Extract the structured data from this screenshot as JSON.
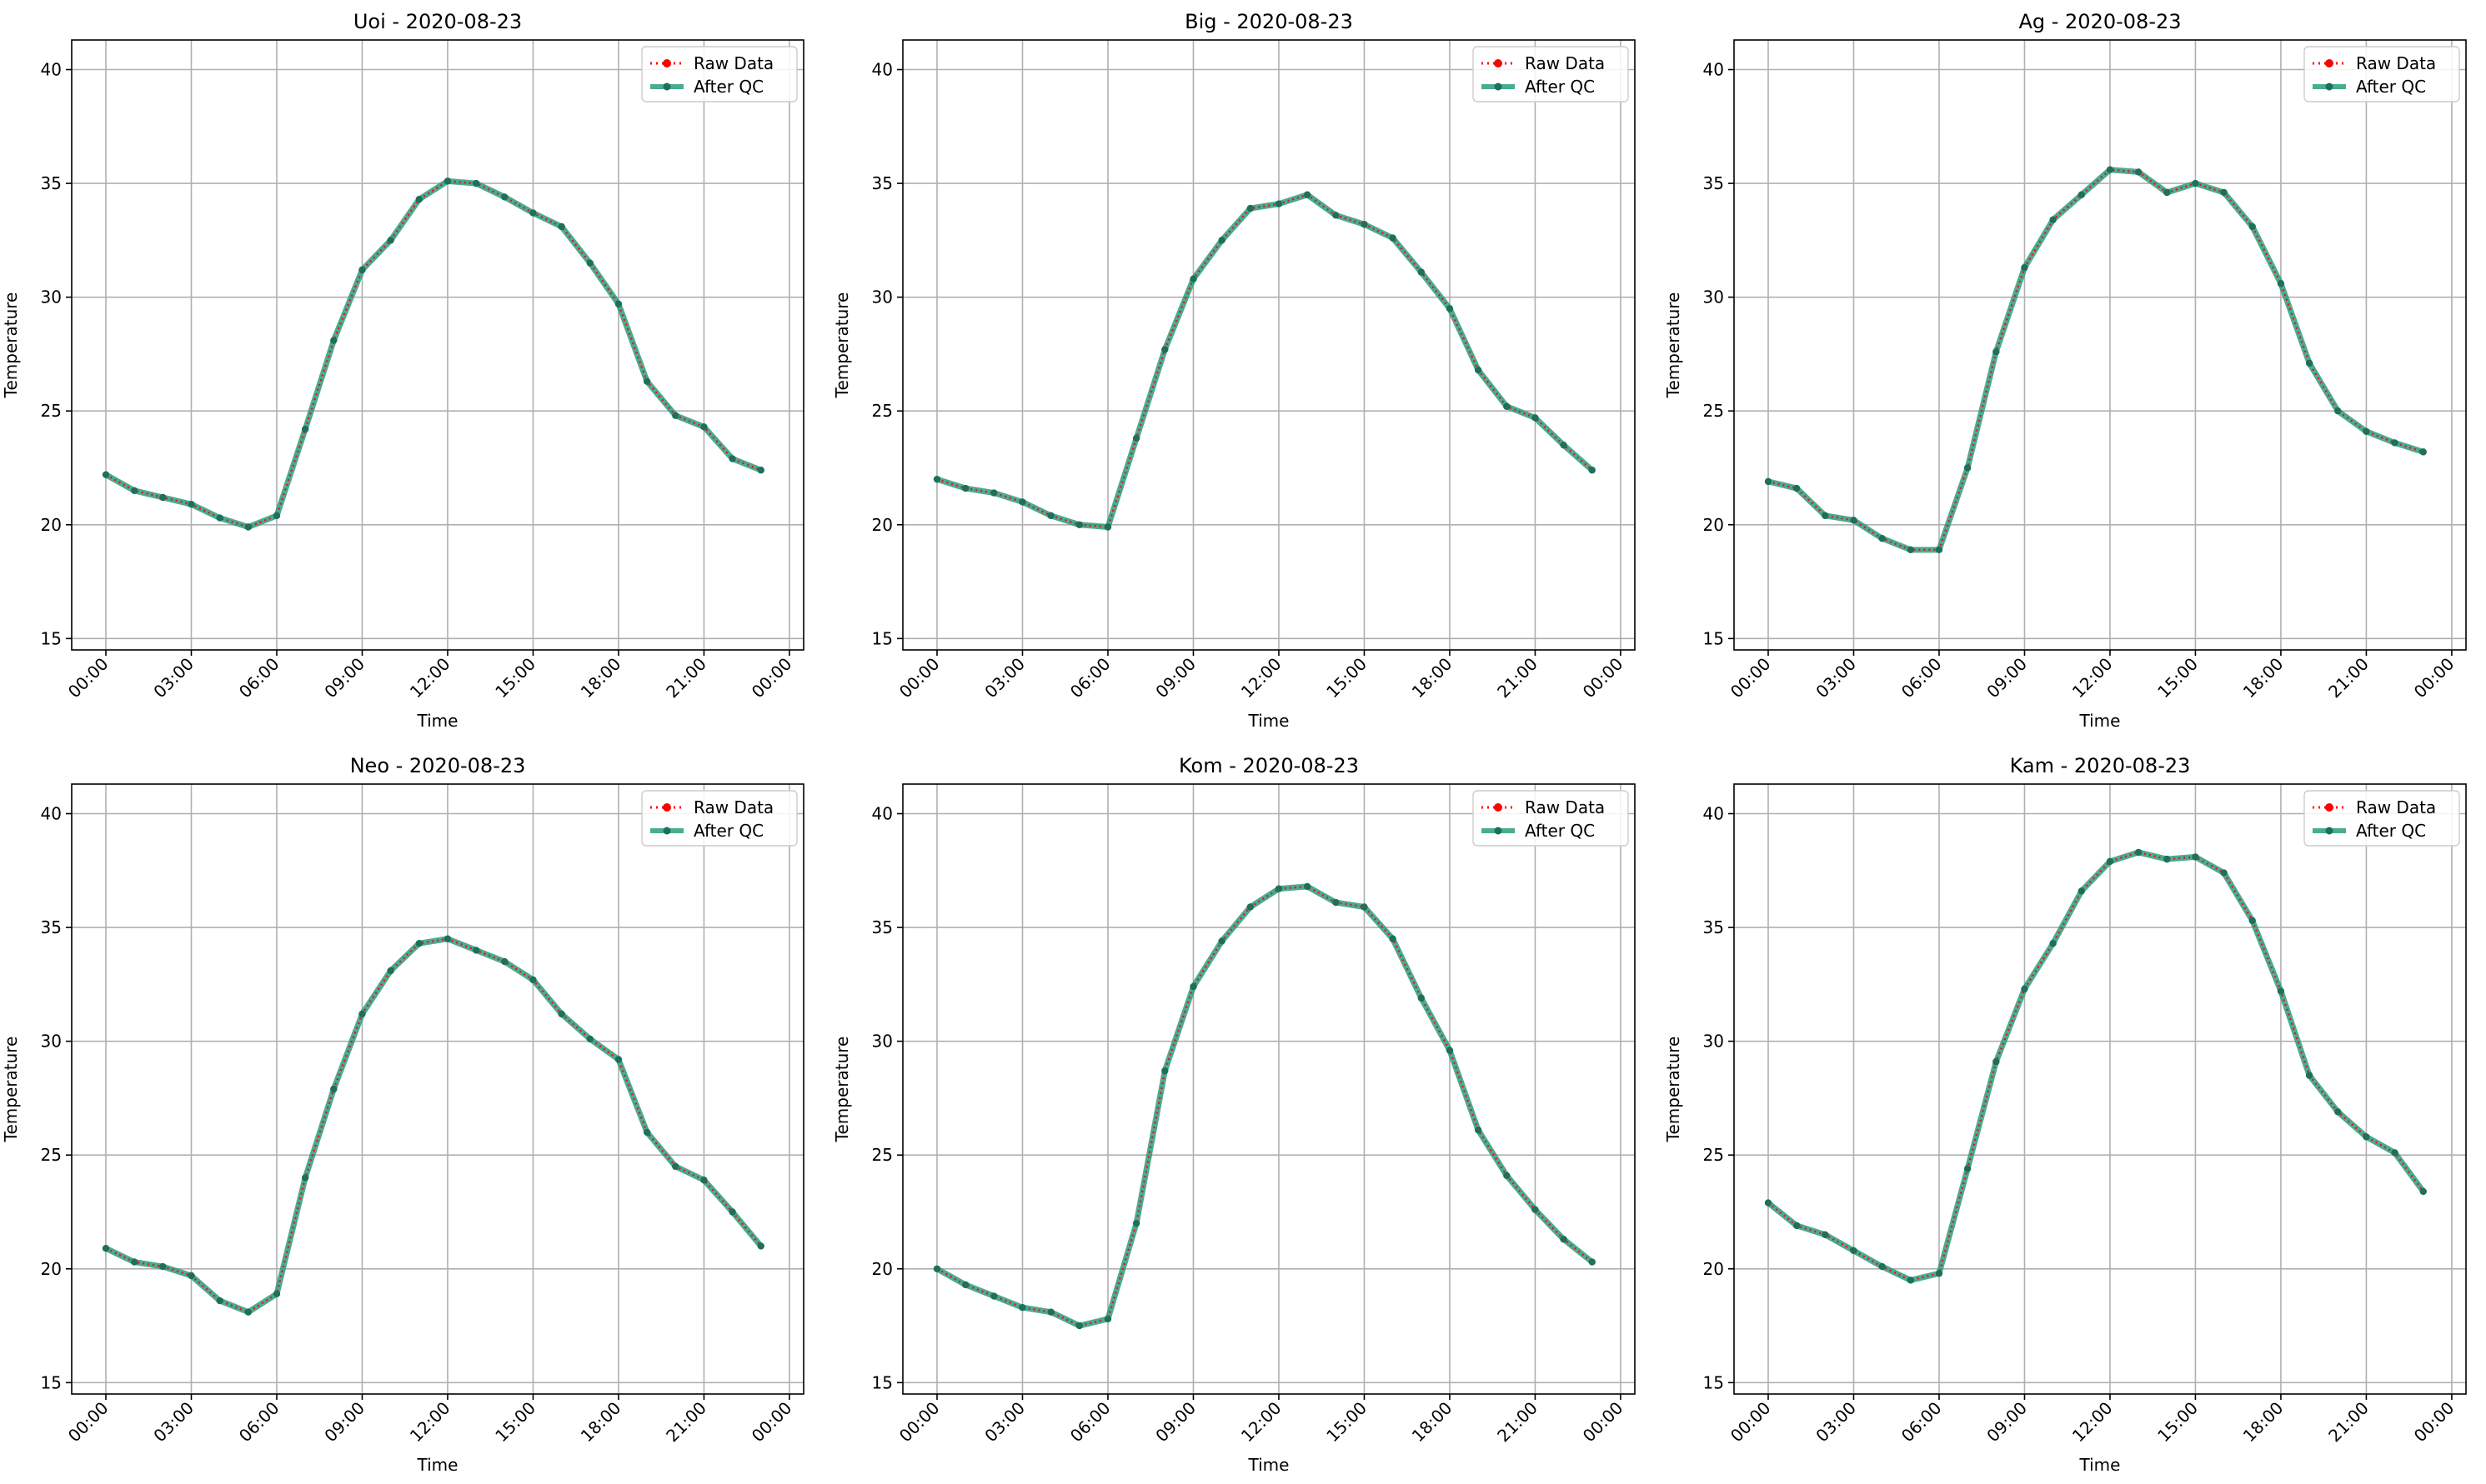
{
  "figure": {
    "legend": {
      "raw_label": "Raw Data",
      "qc_label": "After QC",
      "placement": "top-right"
    },
    "colors": {
      "raw": "#ff0000",
      "qc": "#2a9d7e",
      "qc_marker": "#1f6f5b",
      "grid": "#b0b0b0",
      "axis": "#000000"
    }
  },
  "chart_data": [
    {
      "type": "line",
      "title": "Uoi - 2020-08-23",
      "xlabel": "Time",
      "ylabel": "Temperature",
      "x_hours": [
        0,
        1,
        2,
        3,
        4,
        5,
        6,
        7,
        8,
        9,
        10,
        11,
        12,
        13,
        14,
        15,
        16,
        17,
        18,
        19,
        20,
        21,
        22,
        23
      ],
      "x_ticks": [
        "00:00",
        "03:00",
        "06:00",
        "09:00",
        "12:00",
        "15:00",
        "18:00",
        "21:00",
        "00:00"
      ],
      "y_ticks": [
        15,
        20,
        25,
        30,
        35,
        40
      ],
      "xlim": [
        -1.2,
        24.5
      ],
      "ylim": [
        14.5,
        41.3
      ],
      "grid": true,
      "series": [
        {
          "name": "Raw Data",
          "values": [
            22.2,
            21.5,
            21.2,
            20.9,
            20.3,
            19.9,
            20.4,
            24.2,
            28.1,
            31.2,
            32.5,
            34.3,
            35.1,
            35.0,
            34.4,
            33.7,
            33.1,
            31.5,
            29.7,
            26.3,
            24.8,
            24.3,
            22.9,
            22.4
          ]
        },
        {
          "name": "After QC",
          "values": [
            22.2,
            21.5,
            21.2,
            20.9,
            20.3,
            19.9,
            20.4,
            24.2,
            28.1,
            31.2,
            32.5,
            34.3,
            35.1,
            35.0,
            34.4,
            33.7,
            33.1,
            31.5,
            29.7,
            26.3,
            24.8,
            24.3,
            22.9,
            22.4
          ]
        }
      ]
    },
    {
      "type": "line",
      "title": "Big - 2020-08-23",
      "xlabel": "Time",
      "ylabel": "Temperature",
      "x_hours": [
        0,
        1,
        2,
        3,
        4,
        5,
        6,
        7,
        8,
        9,
        10,
        11,
        12,
        13,
        14,
        15,
        16,
        17,
        18,
        19,
        20,
        21,
        22,
        23
      ],
      "x_ticks": [
        "00:00",
        "03:00",
        "06:00",
        "09:00",
        "12:00",
        "15:00",
        "18:00",
        "21:00",
        "00:00"
      ],
      "y_ticks": [
        15,
        20,
        25,
        30,
        35,
        40
      ],
      "xlim": [
        -1.2,
        24.5
      ],
      "ylim": [
        14.5,
        41.3
      ],
      "grid": true,
      "series": [
        {
          "name": "Raw Data",
          "values": [
            22.0,
            21.6,
            21.4,
            21.0,
            20.4,
            20.0,
            19.9,
            23.8,
            27.7,
            30.8,
            32.5,
            33.9,
            34.1,
            34.5,
            33.6,
            33.2,
            32.6,
            31.1,
            29.5,
            26.8,
            25.2,
            24.7,
            23.5,
            22.4
          ]
        },
        {
          "name": "After QC",
          "values": [
            22.0,
            21.6,
            21.4,
            21.0,
            20.4,
            20.0,
            19.9,
            23.8,
            27.7,
            30.8,
            32.5,
            33.9,
            34.1,
            34.5,
            33.6,
            33.2,
            32.6,
            31.1,
            29.5,
            26.8,
            25.2,
            24.7,
            23.5,
            22.4
          ]
        }
      ]
    },
    {
      "type": "line",
      "title": "Ag - 2020-08-23",
      "xlabel": "Time",
      "ylabel": "Temperature",
      "x_hours": [
        0,
        1,
        2,
        3,
        4,
        5,
        6,
        7,
        8,
        9,
        10,
        11,
        12,
        13,
        14,
        15,
        16,
        17,
        18,
        19,
        20,
        21,
        22,
        23
      ],
      "x_ticks": [
        "00:00",
        "03:00",
        "06:00",
        "09:00",
        "12:00",
        "15:00",
        "18:00",
        "21:00",
        "00:00"
      ],
      "y_ticks": [
        15,
        20,
        25,
        30,
        35,
        40
      ],
      "xlim": [
        -1.2,
        24.5
      ],
      "ylim": [
        14.5,
        41.3
      ],
      "grid": true,
      "series": [
        {
          "name": "Raw Data",
          "values": [
            21.9,
            21.6,
            20.4,
            20.2,
            19.4,
            18.9,
            18.9,
            22.5,
            27.6,
            31.3,
            33.4,
            34.5,
            35.6,
            35.5,
            34.6,
            35.0,
            34.6,
            33.1,
            30.6,
            27.1,
            25.0,
            24.1,
            23.6,
            23.2
          ]
        },
        {
          "name": "After QC",
          "values": [
            21.9,
            21.6,
            20.4,
            20.2,
            19.4,
            18.9,
            18.9,
            22.5,
            27.6,
            31.3,
            33.4,
            34.5,
            35.6,
            35.5,
            34.6,
            35.0,
            34.6,
            33.1,
            30.6,
            27.1,
            25.0,
            24.1,
            23.6,
            23.2
          ]
        }
      ]
    },
    {
      "type": "line",
      "title": "Neo - 2020-08-23",
      "xlabel": "Time",
      "ylabel": "Temperature",
      "x_hours": [
        0,
        1,
        2,
        3,
        4,
        5,
        6,
        7,
        8,
        9,
        10,
        11,
        12,
        13,
        14,
        15,
        16,
        17,
        18,
        19,
        20,
        21,
        22,
        23
      ],
      "x_ticks": [
        "00:00",
        "03:00",
        "06:00",
        "09:00",
        "12:00",
        "15:00",
        "18:00",
        "21:00",
        "00:00"
      ],
      "y_ticks": [
        15,
        20,
        25,
        30,
        35,
        40
      ],
      "xlim": [
        -1.2,
        24.5
      ],
      "ylim": [
        14.5,
        41.3
      ],
      "grid": true,
      "series": [
        {
          "name": "Raw Data",
          "values": [
            20.9,
            20.3,
            20.1,
            19.7,
            18.6,
            18.1,
            18.9,
            24.0,
            27.9,
            31.2,
            33.1,
            34.3,
            34.5,
            34.0,
            33.5,
            32.7,
            31.2,
            30.1,
            29.2,
            26.0,
            24.5,
            23.9,
            22.5,
            21.0
          ]
        },
        {
          "name": "After QC",
          "values": [
            20.9,
            20.3,
            20.1,
            19.7,
            18.6,
            18.1,
            18.9,
            24.0,
            27.9,
            31.2,
            33.1,
            34.3,
            34.5,
            34.0,
            33.5,
            32.7,
            31.2,
            30.1,
            29.2,
            26.0,
            24.5,
            23.9,
            22.5,
            21.0
          ]
        }
      ]
    },
    {
      "type": "line",
      "title": "Kom - 2020-08-23",
      "xlabel": "Time",
      "ylabel": "Temperature",
      "x_hours": [
        0,
        1,
        2,
        3,
        4,
        5,
        6,
        7,
        8,
        9,
        10,
        11,
        12,
        13,
        14,
        15,
        16,
        17,
        18,
        19,
        20,
        21,
        22,
        23
      ],
      "x_ticks": [
        "00:00",
        "03:00",
        "06:00",
        "09:00",
        "12:00",
        "15:00",
        "18:00",
        "21:00",
        "00:00"
      ],
      "y_ticks": [
        15,
        20,
        25,
        30,
        35,
        40
      ],
      "xlim": [
        -1.2,
        24.5
      ],
      "ylim": [
        14.5,
        41.3
      ],
      "grid": true,
      "series": [
        {
          "name": "Raw Data",
          "values": [
            20.0,
            19.3,
            18.8,
            18.3,
            18.1,
            17.5,
            17.8,
            22.0,
            28.7,
            32.4,
            34.4,
            35.9,
            36.7,
            36.8,
            36.1,
            35.9,
            34.5,
            31.9,
            29.6,
            26.1,
            24.1,
            22.6,
            21.3,
            20.3
          ]
        },
        {
          "name": "After QC",
          "values": [
            20.0,
            19.3,
            18.8,
            18.3,
            18.1,
            17.5,
            17.8,
            22.0,
            28.7,
            32.4,
            34.4,
            35.9,
            36.7,
            36.8,
            36.1,
            35.9,
            34.5,
            31.9,
            29.6,
            26.1,
            24.1,
            22.6,
            21.3,
            20.3
          ]
        }
      ]
    },
    {
      "type": "line",
      "title": "Kam - 2020-08-23",
      "xlabel": "Time",
      "ylabel": "Temperature",
      "x_hours": [
        0,
        1,
        2,
        3,
        4,
        5,
        6,
        7,
        8,
        9,
        10,
        11,
        12,
        13,
        14,
        15,
        16,
        17,
        18,
        19,
        20,
        21,
        22,
        23
      ],
      "x_ticks": [
        "00:00",
        "03:00",
        "06:00",
        "09:00",
        "12:00",
        "15:00",
        "18:00",
        "21:00",
        "00:00"
      ],
      "y_ticks": [
        15,
        20,
        25,
        30,
        35,
        40
      ],
      "xlim": [
        -1.2,
        24.5
      ],
      "ylim": [
        14.5,
        41.3
      ],
      "grid": true,
      "series": [
        {
          "name": "Raw Data",
          "values": [
            22.9,
            21.9,
            21.5,
            20.8,
            20.1,
            19.5,
            19.8,
            24.4,
            29.1,
            32.3,
            34.3,
            36.6,
            37.9,
            38.3,
            38.0,
            38.1,
            37.4,
            35.3,
            32.2,
            28.5,
            26.9,
            25.8,
            25.1,
            23.4
          ]
        },
        {
          "name": "After QC",
          "values": [
            22.9,
            21.9,
            21.5,
            20.8,
            20.1,
            19.5,
            19.8,
            24.4,
            29.1,
            32.3,
            34.3,
            36.6,
            37.9,
            38.3,
            38.0,
            38.1,
            37.4,
            35.3,
            32.2,
            28.5,
            26.9,
            25.8,
            25.1,
            23.4
          ]
        }
      ]
    }
  ]
}
